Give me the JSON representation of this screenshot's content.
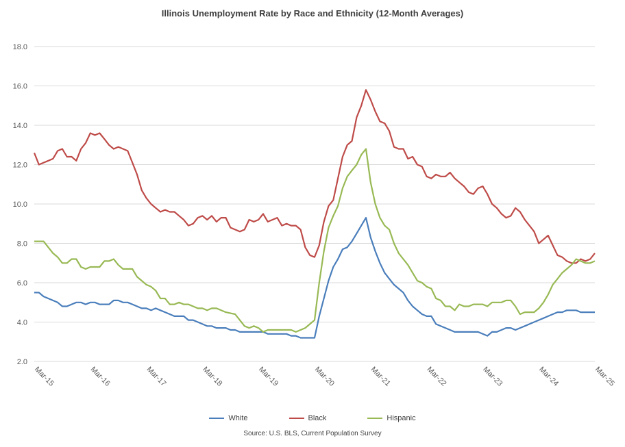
{
  "chart_data": {
    "type": "line",
    "title": "Illinois Unemployment Rate by Race and Ethnicity (12-Month Averages)",
    "source": "Source: U.S. BLS, Current Population Survey",
    "xlabel": "",
    "ylabel": "",
    "ylim": [
      2.0,
      18.0
    ],
    "yticks": [
      "2.0",
      "4.0",
      "6.0",
      "8.0",
      "10.0",
      "12.0",
      "14.0",
      "16.0",
      "18.0"
    ],
    "xticks": [
      "Mar-15",
      "Mar-16",
      "Mar-17",
      "Mar-18",
      "Mar-19",
      "Mar-20",
      "Mar-21",
      "Mar-22",
      "Mar-23",
      "Mar-24",
      "Mar-25"
    ],
    "grid": "horizontal",
    "legend_position": "bottom",
    "x": [
      "Mar-15",
      "Apr-15",
      "May-15",
      "Jun-15",
      "Jul-15",
      "Aug-15",
      "Sep-15",
      "Oct-15",
      "Nov-15",
      "Dec-15",
      "Jan-16",
      "Feb-16",
      "Mar-16",
      "Apr-16",
      "May-16",
      "Jun-16",
      "Jul-16",
      "Aug-16",
      "Sep-16",
      "Oct-16",
      "Nov-16",
      "Dec-16",
      "Jan-17",
      "Feb-17",
      "Mar-17",
      "Apr-17",
      "May-17",
      "Jun-17",
      "Jul-17",
      "Aug-17",
      "Sep-17",
      "Oct-17",
      "Nov-17",
      "Dec-17",
      "Jan-18",
      "Feb-18",
      "Mar-18",
      "Apr-18",
      "May-18",
      "Jun-18",
      "Jul-18",
      "Aug-18",
      "Sep-18",
      "Oct-18",
      "Nov-18",
      "Dec-18",
      "Jan-19",
      "Feb-19",
      "Mar-19",
      "Apr-19",
      "May-19",
      "Jun-19",
      "Jul-19",
      "Aug-19",
      "Sep-19",
      "Oct-19",
      "Nov-19",
      "Dec-19",
      "Jan-20",
      "Feb-20",
      "Mar-20",
      "Apr-20",
      "May-20",
      "Jun-20",
      "Jul-20",
      "Aug-20",
      "Sep-20",
      "Oct-20",
      "Nov-20",
      "Dec-20",
      "Jan-21",
      "Feb-21",
      "Mar-21",
      "Apr-21",
      "May-21",
      "Jun-21",
      "Jul-21",
      "Aug-21",
      "Sep-21",
      "Oct-21",
      "Nov-21",
      "Dec-21",
      "Jan-22",
      "Feb-22",
      "Mar-22",
      "Apr-22",
      "May-22",
      "Jun-22",
      "Jul-22",
      "Aug-22",
      "Sep-22",
      "Oct-22",
      "Nov-22",
      "Dec-22",
      "Jan-23",
      "Feb-23",
      "Mar-23",
      "Apr-23",
      "May-23",
      "Jun-23",
      "Jul-23",
      "Aug-23",
      "Sep-23",
      "Oct-23",
      "Nov-23",
      "Dec-23",
      "Jan-24",
      "Feb-24",
      "Mar-24",
      "Apr-24",
      "May-24",
      "Jun-24",
      "Jul-24",
      "Aug-24",
      "Sep-24",
      "Oct-24",
      "Nov-24",
      "Dec-24",
      "Jan-25",
      "Feb-25",
      "Mar-25"
    ],
    "series": [
      {
        "name": "White",
        "color": "#4A7EBB",
        "values": [
          5.5,
          5.5,
          5.3,
          5.2,
          5.1,
          5.0,
          4.8,
          4.8,
          4.9,
          5.0,
          5.0,
          4.9,
          5.0,
          5.0,
          4.9,
          4.9,
          4.9,
          5.1,
          5.1,
          5.0,
          5.0,
          4.9,
          4.8,
          4.7,
          4.7,
          4.6,
          4.7,
          4.6,
          4.5,
          4.4,
          4.3,
          4.3,
          4.3,
          4.1,
          4.1,
          4.0,
          3.9,
          3.8,
          3.8,
          3.7,
          3.7,
          3.7,
          3.6,
          3.6,
          3.5,
          3.5,
          3.5,
          3.5,
          3.5,
          3.5,
          3.4,
          3.4,
          3.4,
          3.4,
          3.4,
          3.3,
          3.3,
          3.2,
          3.2,
          3.2,
          3.2,
          4.3,
          5.2,
          6.1,
          6.8,
          7.2,
          7.7,
          7.8,
          8.1,
          8.5,
          8.9,
          9.3,
          8.3,
          7.6,
          7.0,
          6.5,
          6.2,
          5.9,
          5.7,
          5.5,
          5.1,
          4.8,
          4.6,
          4.4,
          4.3,
          4.3,
          3.9,
          3.8,
          3.7,
          3.6,
          3.5,
          3.5,
          3.5,
          3.5,
          3.5,
          3.5,
          3.4,
          3.3,
          3.5,
          3.5,
          3.6,
          3.7,
          3.7,
          3.6,
          3.7,
          3.8,
          3.9,
          4.0,
          4.1,
          4.2,
          4.3,
          4.4,
          4.5,
          4.5,
          4.6,
          4.6,
          4.6,
          4.5,
          4.5,
          4.5,
          4.5
        ]
      },
      {
        "name": "Black",
        "color": "#BE4B48",
        "values": [
          12.6,
          12.0,
          12.1,
          12.2,
          12.3,
          12.7,
          12.8,
          12.4,
          12.4,
          12.2,
          12.8,
          13.1,
          13.6,
          13.5,
          13.6,
          13.3,
          13.0,
          12.8,
          12.9,
          12.8,
          12.7,
          12.1,
          11.5,
          10.7,
          10.3,
          10.0,
          9.8,
          9.6,
          9.7,
          9.6,
          9.6,
          9.4,
          9.2,
          8.9,
          9.0,
          9.3,
          9.4,
          9.2,
          9.4,
          9.1,
          9.3,
          9.3,
          8.8,
          8.7,
          8.6,
          8.7,
          9.2,
          9.1,
          9.2,
          9.5,
          9.1,
          9.2,
          9.3,
          8.9,
          9.0,
          8.9,
          8.9,
          8.7,
          7.8,
          7.4,
          7.3,
          7.9,
          9.1,
          9.9,
          10.2,
          11.3,
          12.4,
          13.0,
          13.2,
          14.4,
          15.0,
          15.8,
          15.3,
          14.7,
          14.2,
          14.1,
          13.7,
          12.9,
          12.8,
          12.8,
          12.3,
          12.4,
          12.0,
          11.9,
          11.4,
          11.3,
          11.5,
          11.4,
          11.4,
          11.6,
          11.3,
          11.1,
          10.9,
          10.6,
          10.5,
          10.8,
          10.9,
          10.5,
          10.0,
          9.8,
          9.5,
          9.3,
          9.4,
          9.8,
          9.6,
          9.2,
          8.9,
          8.6,
          8.0,
          8.2,
          8.4,
          7.9,
          7.4,
          7.3,
          7.1,
          7.0,
          7.0,
          7.2,
          7.1,
          7.2,
          7.5
        ]
      },
      {
        "name": "Hispanic",
        "color": "#98B954",
        "values": [
          8.1,
          8.1,
          8.1,
          7.8,
          7.5,
          7.3,
          7.0,
          7.0,
          7.2,
          7.2,
          6.8,
          6.7,
          6.8,
          6.8,
          6.8,
          7.1,
          7.1,
          7.2,
          6.9,
          6.7,
          6.7,
          6.7,
          6.3,
          6.1,
          5.9,
          5.8,
          5.6,
          5.2,
          5.2,
          4.9,
          4.9,
          5.0,
          4.9,
          4.9,
          4.8,
          4.7,
          4.7,
          4.6,
          4.7,
          4.7,
          4.6,
          4.5,
          4.45,
          4.4,
          4.1,
          3.8,
          3.7,
          3.8,
          3.7,
          3.5,
          3.6,
          3.6,
          3.6,
          3.6,
          3.6,
          3.6,
          3.5,
          3.6,
          3.7,
          3.9,
          4.1,
          6.0,
          7.6,
          8.8,
          9.4,
          9.9,
          10.8,
          11.4,
          11.7,
          12.0,
          12.5,
          12.8,
          11.1,
          10.0,
          9.3,
          8.9,
          8.7,
          8.0,
          7.5,
          7.2,
          6.9,
          6.5,
          6.1,
          6.0,
          5.8,
          5.7,
          5.2,
          5.1,
          4.8,
          4.8,
          4.6,
          4.9,
          4.8,
          4.8,
          4.9,
          4.9,
          4.9,
          4.8,
          5.0,
          5.0,
          5.0,
          5.1,
          5.1,
          4.8,
          4.4,
          4.5,
          4.5,
          4.5,
          4.7,
          5.0,
          5.4,
          5.9,
          6.2,
          6.5,
          6.7,
          6.9,
          7.2,
          7.1,
          7.0,
          7.0,
          7.1
        ]
      }
    ]
  }
}
